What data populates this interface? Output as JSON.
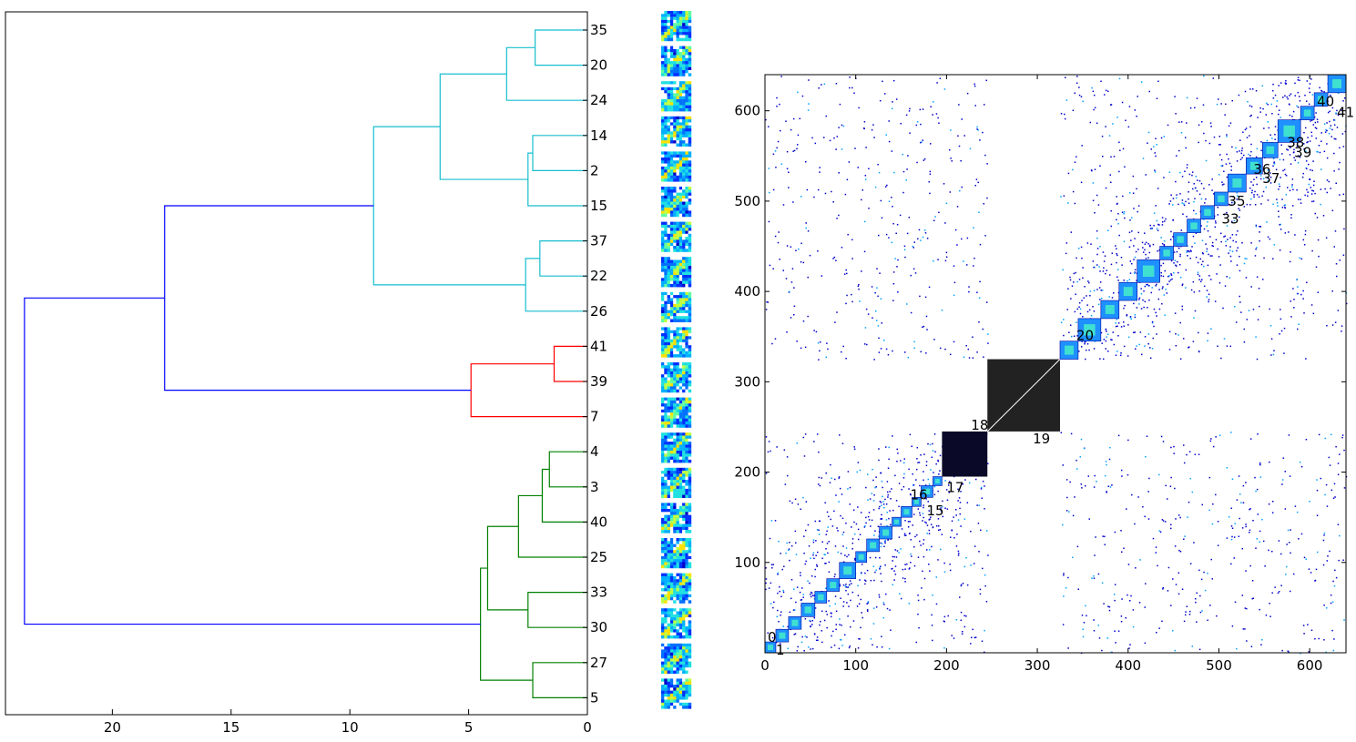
{
  "chart_data": [
    {
      "type": "dendrogram",
      "orientation": "left",
      "xlim": [
        24.5,
        0
      ],
      "x_ticks": [
        20,
        15,
        10,
        5,
        0
      ],
      "leaf_labels": [
        "35",
        "20",
        "24",
        "14",
        "2",
        "15",
        "37",
        "22",
        "26",
        "41",
        "39",
        "7",
        "4",
        "3",
        "40",
        "25",
        "33",
        "30",
        "27",
        "5"
      ],
      "merges": [
        {
          "a": "L0",
          "b": "L1",
          "h": 2.2,
          "color": "#17becf"
        },
        {
          "a": "M0",
          "b": "L2",
          "h": 3.4,
          "color": "#17becf"
        },
        {
          "a": "L3",
          "b": "L4",
          "h": 2.3,
          "color": "#17becf"
        },
        {
          "a": "M2",
          "b": "L5",
          "h": 2.5,
          "color": "#17becf"
        },
        {
          "a": "M1",
          "b": "M3",
          "h": 6.2,
          "color": "#17becf"
        },
        {
          "a": "L6",
          "b": "L7",
          "h": 2.0,
          "color": "#17becf"
        },
        {
          "a": "M5",
          "b": "L8",
          "h": 2.6,
          "color": "#17becf"
        },
        {
          "a": "M4",
          "b": "M6",
          "h": 9.0,
          "color": "#17becf"
        },
        {
          "a": "L9",
          "b": "L10",
          "h": 1.4,
          "color": "#ff0000"
        },
        {
          "a": "M8",
          "b": "L11",
          "h": 4.9,
          "color": "#ff0000"
        },
        {
          "a": "M7",
          "b": "M9",
          "h": 17.8,
          "color": "#0000ff"
        },
        {
          "a": "L12",
          "b": "L13",
          "h": 1.6,
          "color": "#008000"
        },
        {
          "a": "M11",
          "b": "L14",
          "h": 1.9,
          "color": "#008000"
        },
        {
          "a": "M12",
          "b": "L15",
          "h": 2.9,
          "color": "#008000"
        },
        {
          "a": "L16",
          "b": "L17",
          "h": 2.5,
          "color": "#008000"
        },
        {
          "a": "M13",
          "b": "M14",
          "h": 4.2,
          "color": "#008000"
        },
        {
          "a": "L18",
          "b": "L19",
          "h": 2.3,
          "color": "#008000"
        },
        {
          "a": "M15",
          "b": "M16",
          "h": 4.5,
          "color": "#008000"
        },
        {
          "a": "M10",
          "b": "M17",
          "h": 23.7,
          "color": "#0000ff"
        }
      ]
    },
    {
      "type": "heatmap",
      "xlim": [
        0,
        640
      ],
      "ylim": [
        0,
        640
      ],
      "x_ticks": [
        0,
        100,
        200,
        300,
        400,
        500,
        600
      ],
      "y_ticks": [
        100,
        200,
        300,
        400,
        500,
        600
      ],
      "empty_band": [
        245,
        325
      ],
      "dense_block": [
        245,
        325
      ],
      "dark_block": [
        195,
        245
      ],
      "diagonal_blocks": [
        [
          0,
          12
        ],
        [
          12,
          26
        ],
        [
          26,
          40
        ],
        [
          40,
          55
        ],
        [
          55,
          68
        ],
        [
          68,
          82
        ],
        [
          82,
          100
        ],
        [
          100,
          112
        ],
        [
          112,
          126
        ],
        [
          126,
          140
        ],
        [
          140,
          150
        ],
        [
          150,
          162
        ],
        [
          162,
          172
        ],
        [
          172,
          185
        ],
        [
          185,
          195
        ],
        [
          325,
          345
        ],
        [
          345,
          370
        ],
        [
          370,
          390
        ],
        [
          390,
          410
        ],
        [
          410,
          435
        ],
        [
          435,
          450
        ],
        [
          450,
          465
        ],
        [
          465,
          480
        ],
        [
          480,
          495
        ],
        [
          495,
          510
        ],
        [
          510,
          530
        ],
        [
          530,
          548
        ],
        [
          548,
          565
        ],
        [
          565,
          590
        ],
        [
          590,
          605
        ],
        [
          605,
          620
        ],
        [
          620,
          640
        ]
      ],
      "annotations": [
        {
          "text": "0",
          "x": 3,
          "y": 12
        },
        {
          "text": "1",
          "x": 12,
          "y": -2
        },
        {
          "text": "18",
          "x": 227,
          "y": 247
        },
        {
          "text": "19",
          "x": 295,
          "y": 232
        },
        {
          "text": "17",
          "x": 200,
          "y": 178
        },
        {
          "text": "15",
          "x": 178,
          "y": 152
        },
        {
          "text": "16",
          "x": 160,
          "y": 170
        },
        {
          "text": "20",
          "x": 343,
          "y": 346
        },
        {
          "text": "38",
          "x": 575,
          "y": 560
        },
        {
          "text": "39",
          "x": 583,
          "y": 549
        },
        {
          "text": "40",
          "x": 608,
          "y": 605
        },
        {
          "text": "41",
          "x": 630,
          "y": 593
        },
        {
          "text": "36",
          "x": 538,
          "y": 530
        },
        {
          "text": "37",
          "x": 548,
          "y": 520
        },
        {
          "text": "35",
          "x": 510,
          "y": 495
        },
        {
          "text": "33",
          "x": 503,
          "y": 475
        }
      ]
    }
  ],
  "colors": {
    "cyan": "#17becf",
    "red": "#ff0000",
    "green": "#008000",
    "blue": "#0000ff",
    "dense_block": "#222222"
  }
}
